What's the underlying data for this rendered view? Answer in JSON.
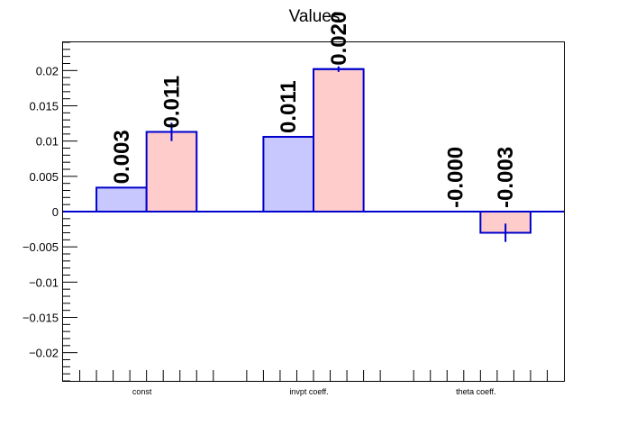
{
  "chart_data": {
    "type": "bar",
    "title": "Values",
    "xlabel": "",
    "ylabel": "",
    "categories": [
      "const",
      "invpt coeff.",
      "theta coeff."
    ],
    "ylim": [
      -0.024,
      0.024
    ],
    "yticks": [
      -0.02,
      -0.015,
      -0.01,
      -0.005,
      0,
      0.005,
      0.01,
      0.015,
      0.02
    ],
    "ytick_labels": [
      "−0.02",
      "−0.015",
      "−0.01",
      "−0.005",
      "0",
      "0.005",
      "0.01",
      "0.015",
      "0.02"
    ],
    "grid": false,
    "series": [
      {
        "color": "#c8c8ff",
        "edge_color": "#0000cc",
        "values": [
          0.0034,
          0.0106,
          0.0
        ],
        "errors": [
          null,
          null,
          null
        ],
        "labels": [
          "0.003",
          "0.011",
          "-0.000"
        ]
      },
      {
        "color": "#ffcccc",
        "edge_color": "#0000cc",
        "values": [
          0.0113,
          0.0202,
          -0.003
        ],
        "errors": [
          0.0013,
          0.0004,
          0.0013
        ],
        "labels": [
          "0.011",
          "0.020",
          "-0.003"
        ]
      }
    ]
  }
}
